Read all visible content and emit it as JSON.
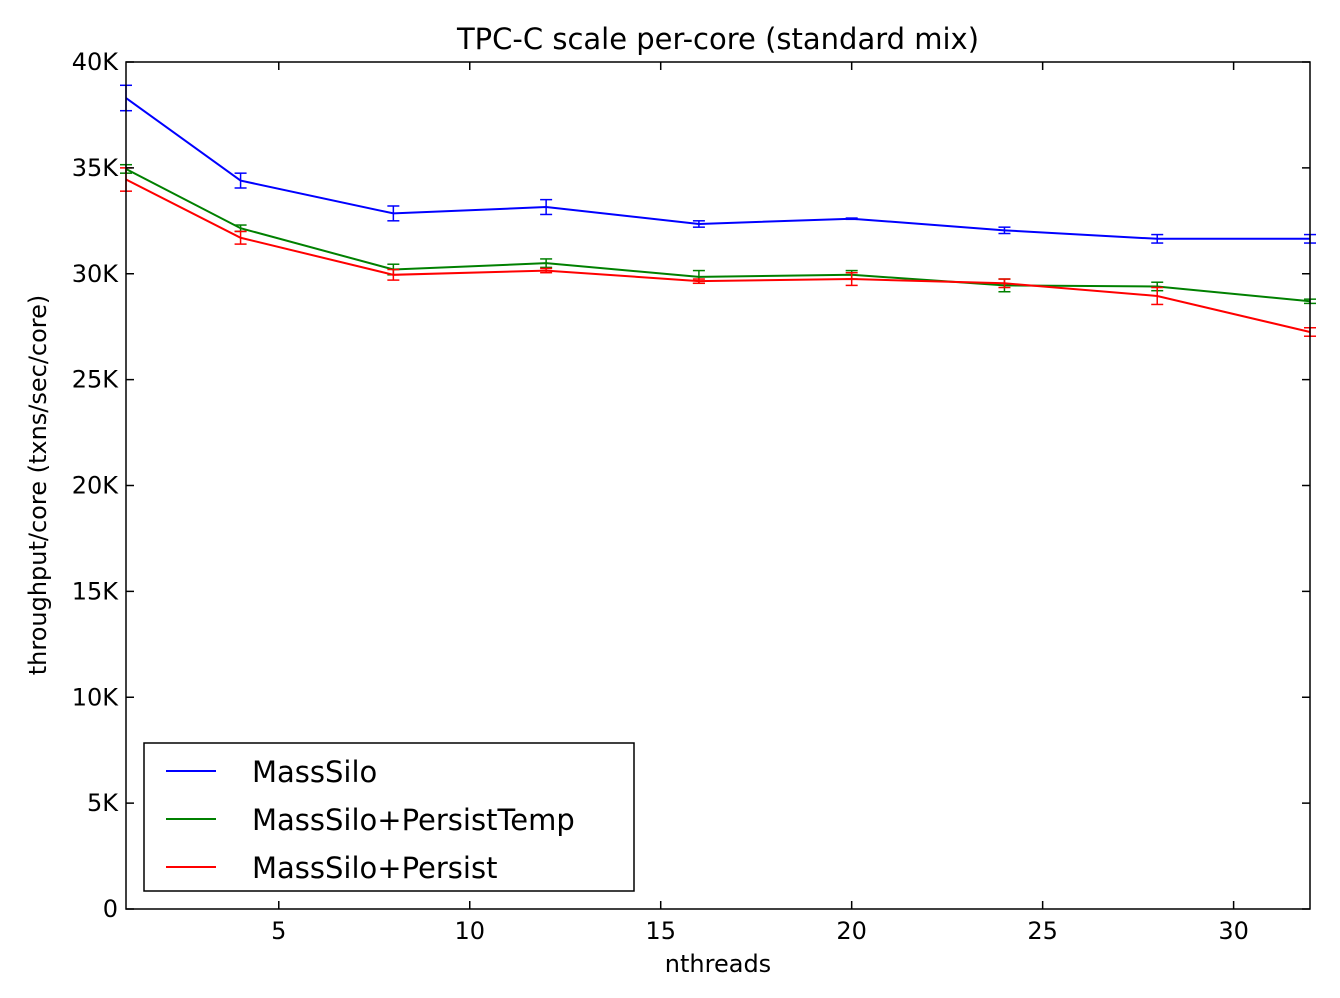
{
  "chart_data": {
    "type": "line",
    "title": "TPC-C scale per-core (standard mix)",
    "xlabel": "nthreads",
    "ylabel": "throughput/core (txns/sec/core)",
    "xlim": [
      1,
      32
    ],
    "ylim": [
      0,
      40000
    ],
    "x_ticks": [
      {
        "value": 5,
        "label": "5"
      },
      {
        "value": 10,
        "label": "10"
      },
      {
        "value": 15,
        "label": "15"
      },
      {
        "value": 20,
        "label": "20"
      },
      {
        "value": 25,
        "label": "25"
      },
      {
        "value": 30,
        "label": "30"
      }
    ],
    "y_ticks": [
      {
        "value": 0,
        "label": "0"
      },
      {
        "value": 5000,
        "label": "5K"
      },
      {
        "value": 10000,
        "label": "10K"
      },
      {
        "value": 15000,
        "label": "15K"
      },
      {
        "value": 20000,
        "label": "20K"
      },
      {
        "value": 25000,
        "label": "25K"
      },
      {
        "value": 30000,
        "label": "30K"
      },
      {
        "value": 35000,
        "label": "35K"
      },
      {
        "value": 40000,
        "label": "40K"
      }
    ],
    "grid": false,
    "legend_position": "lower-left",
    "x": [
      1,
      4,
      8,
      12,
      16,
      20,
      24,
      28,
      32
    ],
    "series": [
      {
        "name": "MassSilo",
        "color": "#0000ff",
        "values": [
          38300,
          34400,
          32850,
          33150,
          32350,
          32600,
          32050,
          31650,
          31650
        ],
        "err": [
          600,
          350,
          350,
          350,
          150,
          30,
          150,
          200,
          200
        ]
      },
      {
        "name": "MassSilo+PersistTemp",
        "color": "#008000",
        "values": [
          34950,
          32150,
          30200,
          30500,
          29850,
          29950,
          29450,
          29400,
          28700
        ],
        "err": [
          200,
          150,
          250,
          200,
          300,
          200,
          300,
          200,
          100
        ]
      },
      {
        "name": "MassSilo+Persist",
        "color": "#ff0000",
        "values": [
          34450,
          31700,
          29950,
          30150,
          29650,
          29750,
          29550,
          28950,
          27250
        ],
        "err": [
          550,
          300,
          250,
          100,
          100,
          300,
          200,
          400,
          200
        ]
      }
    ]
  }
}
